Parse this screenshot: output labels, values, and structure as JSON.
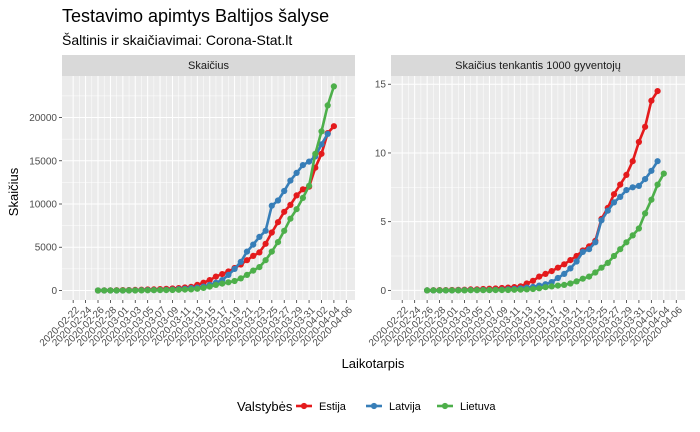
{
  "chart_data": {
    "type": "line",
    "title": "Testavimo apimtys Baltijos šalyse",
    "subtitle": "Šaltinis ir skaičiavimai: Corona-Stat.lt",
    "xlabel": "Laikotarpis",
    "ylabel": "Skaičius",
    "legend_title": "Valstybės",
    "legend_position": "bottom",
    "x_ticks": [
      "2020-02-22",
      "2020-02-24",
      "2020-02-26",
      "2020-02-28",
      "2020-03-01",
      "2020-03-03",
      "2020-03-05",
      "2020-03-07",
      "2020-03-09",
      "2020-03-11",
      "2020-03-13",
      "2020-03-15",
      "2020-03-17",
      "2020-03-19",
      "2020-03-21",
      "2020-03-23",
      "2020-03-25",
      "2020-03-27",
      "2020-03-29",
      "2020-03-31",
      "2020-04-02",
      "2020-04-04",
      "2020-04-06"
    ],
    "x": [
      "2020-02-26",
      "2020-02-27",
      "2020-02-28",
      "2020-02-29",
      "2020-03-01",
      "2020-03-02",
      "2020-03-03",
      "2020-03-04",
      "2020-03-05",
      "2020-03-06",
      "2020-03-07",
      "2020-03-08",
      "2020-03-09",
      "2020-03-10",
      "2020-03-11",
      "2020-03-12",
      "2020-03-13",
      "2020-03-14",
      "2020-03-15",
      "2020-03-16",
      "2020-03-17",
      "2020-03-18",
      "2020-03-19",
      "2020-03-20",
      "2020-03-21",
      "2020-03-22",
      "2020-03-23",
      "2020-03-24",
      "2020-03-25",
      "2020-03-26",
      "2020-03-27",
      "2020-03-28",
      "2020-03-29",
      "2020-03-30",
      "2020-03-31",
      "2020-04-01",
      "2020-04-02",
      "2020-04-03",
      "2020-04-04",
      "2020-04-05"
    ],
    "panels": [
      {
        "strip": "Skaičius",
        "ylim": [
          -1100,
          24800
        ],
        "y_ticks": [
          0,
          5000,
          10000,
          15000,
          20000
        ],
        "series": [
          {
            "name": "Estija",
            "color": "#e41a1c",
            "values": [
              0,
              10,
              20,
              30,
              40,
              50,
              70,
              90,
              110,
              130,
              160,
              190,
              230,
              280,
              340,
              420,
              650,
              900,
              1200,
              1600,
              1900,
              2200,
              2600,
              3000,
              3500,
              4000,
              4400,
              5400,
              6700,
              7900,
              9100,
              9900,
              11000,
              11700,
              12000,
              14200,
              15800,
              18200,
              19000,
              null
            ]
          },
          {
            "name": "Latvija",
            "color": "#377eb8",
            "values": [
              0,
              0,
              0,
              0,
              0,
              10,
              20,
              30,
              40,
              50,
              60,
              80,
              100,
              150,
              200,
              280,
              330,
              450,
              650,
              900,
              1200,
              1800,
              2500,
              3300,
              4500,
              5300,
              6200,
              6900,
              9800,
              10400,
              11500,
              12700,
              13600,
              14500,
              14900,
              15500,
              16900,
              18100,
              null,
              null
            ]
          },
          {
            "name": "Lietuva",
            "color": "#4daf4a",
            "values": [
              0,
              0,
              0,
              0,
              0,
              0,
              0,
              10,
              20,
              30,
              40,
              50,
              60,
              80,
              100,
              130,
              200,
              300,
              450,
              650,
              800,
              950,
              1100,
              1400,
              1800,
              2300,
              2700,
              3500,
              4500,
              5600,
              6900,
              8300,
              9400,
              10700,
              12100,
              15800,
              18400,
              21400,
              23600,
              null
            ]
          }
        ]
      },
      {
        "strip": "Skaičius tenkantis 1000 gyventojų",
        "ylim": [
          -0.7,
          15.6
        ],
        "y_ticks": [
          0,
          5,
          10,
          15
        ],
        "series": [
          {
            "name": "Estija",
            "color": "#e41a1c",
            "values": [
              0,
              0.01,
              0.02,
              0.02,
              0.03,
              0.04,
              0.05,
              0.07,
              0.08,
              0.1,
              0.12,
              0.14,
              0.17,
              0.2,
              0.24,
              0.3,
              0.5,
              0.7,
              1.0,
              1.2,
              1.4,
              1.65,
              1.9,
              2.2,
              2.5,
              2.9,
              3.2,
              3.6,
              5.2,
              6.0,
              7.0,
              7.7,
              8.4,
              9.4,
              10.8,
              11.9,
              13.8,
              14.5,
              null,
              null
            ]
          },
          {
            "name": "Latvija",
            "color": "#377eb8",
            "values": [
              0,
              0,
              0,
              0,
              0,
              0.01,
              0.01,
              0.02,
              0.02,
              0.03,
              0.03,
              0.04,
              0.05,
              0.08,
              0.1,
              0.15,
              0.2,
              0.25,
              0.35,
              0.45,
              0.6,
              0.9,
              1.2,
              1.6,
              2.1,
              2.8,
              3.0,
              3.5,
              5.1,
              5.8,
              6.4,
              6.8,
              7.3,
              7.5,
              7.6,
              8.1,
              8.7,
              9.4,
              null,
              null
            ]
          },
          {
            "name": "Lietuva",
            "color": "#4daf4a",
            "values": [
              0,
              0,
              0,
              0,
              0,
              0,
              0,
              0.01,
              0.01,
              0.01,
              0.02,
              0.02,
              0.02,
              0.03,
              0.04,
              0.05,
              0.07,
              0.1,
              0.15,
              0.23,
              0.29,
              0.35,
              0.4,
              0.5,
              0.65,
              0.85,
              1.0,
              1.3,
              1.65,
              2.0,
              2.5,
              3.0,
              3.5,
              4.0,
              4.5,
              5.6,
              6.6,
              7.7,
              8.5,
              null
            ]
          }
        ]
      }
    ]
  }
}
